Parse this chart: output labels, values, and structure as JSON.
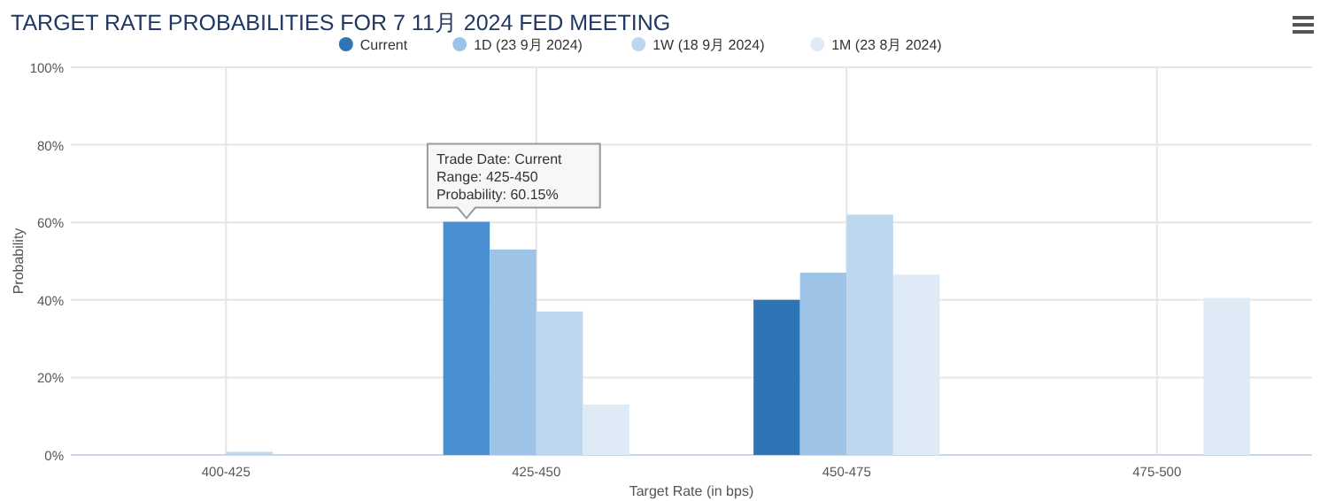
{
  "chart_data": {
    "type": "bar",
    "title": "TARGET RATE PROBABILITIES FOR 7 11月 2024 FED MEETING",
    "xlabel": "Target Rate (in bps)",
    "ylabel": "Probability",
    "categories": [
      "400-425",
      "425-450",
      "450-475",
      "475-500"
    ],
    "series": [
      {
        "name": "Current",
        "color": "#2e75b6",
        "colors": [
          "#2e75b6",
          "#4a8fd2",
          "#2e75b6",
          "#2e75b6"
        ],
        "values": [
          0,
          60.15,
          40,
          0
        ]
      },
      {
        "name": "1D (23 9月 2024)",
        "color": "#9dc3e6",
        "values": [
          0,
          53,
          47,
          0
        ]
      },
      {
        "name": "1W (18 9月 2024)",
        "color": "#bdd7ee",
        "values": [
          0.8,
          37,
          62,
          0
        ]
      },
      {
        "name": "1M (23 8月 2024)",
        "color": "#deebf7",
        "values": [
          0,
          13,
          46.5,
          40.5
        ]
      }
    ],
    "ylim": [
      0,
      100
    ],
    "yticks": [
      {
        "value": 0,
        "label": "0%"
      },
      {
        "value": 20,
        "label": "20%"
      },
      {
        "value": 40,
        "label": "40%"
      },
      {
        "value": 60,
        "label": "60%"
      },
      {
        "value": 80,
        "label": "80%"
      },
      {
        "value": 100,
        "label": "100%"
      }
    ],
    "grid": true,
    "legend": "top",
    "marker": "circle",
    "annotations": [
      "Trade Date: Current\nRange: 425-450\nProbability: 60.15%"
    ]
  }
}
